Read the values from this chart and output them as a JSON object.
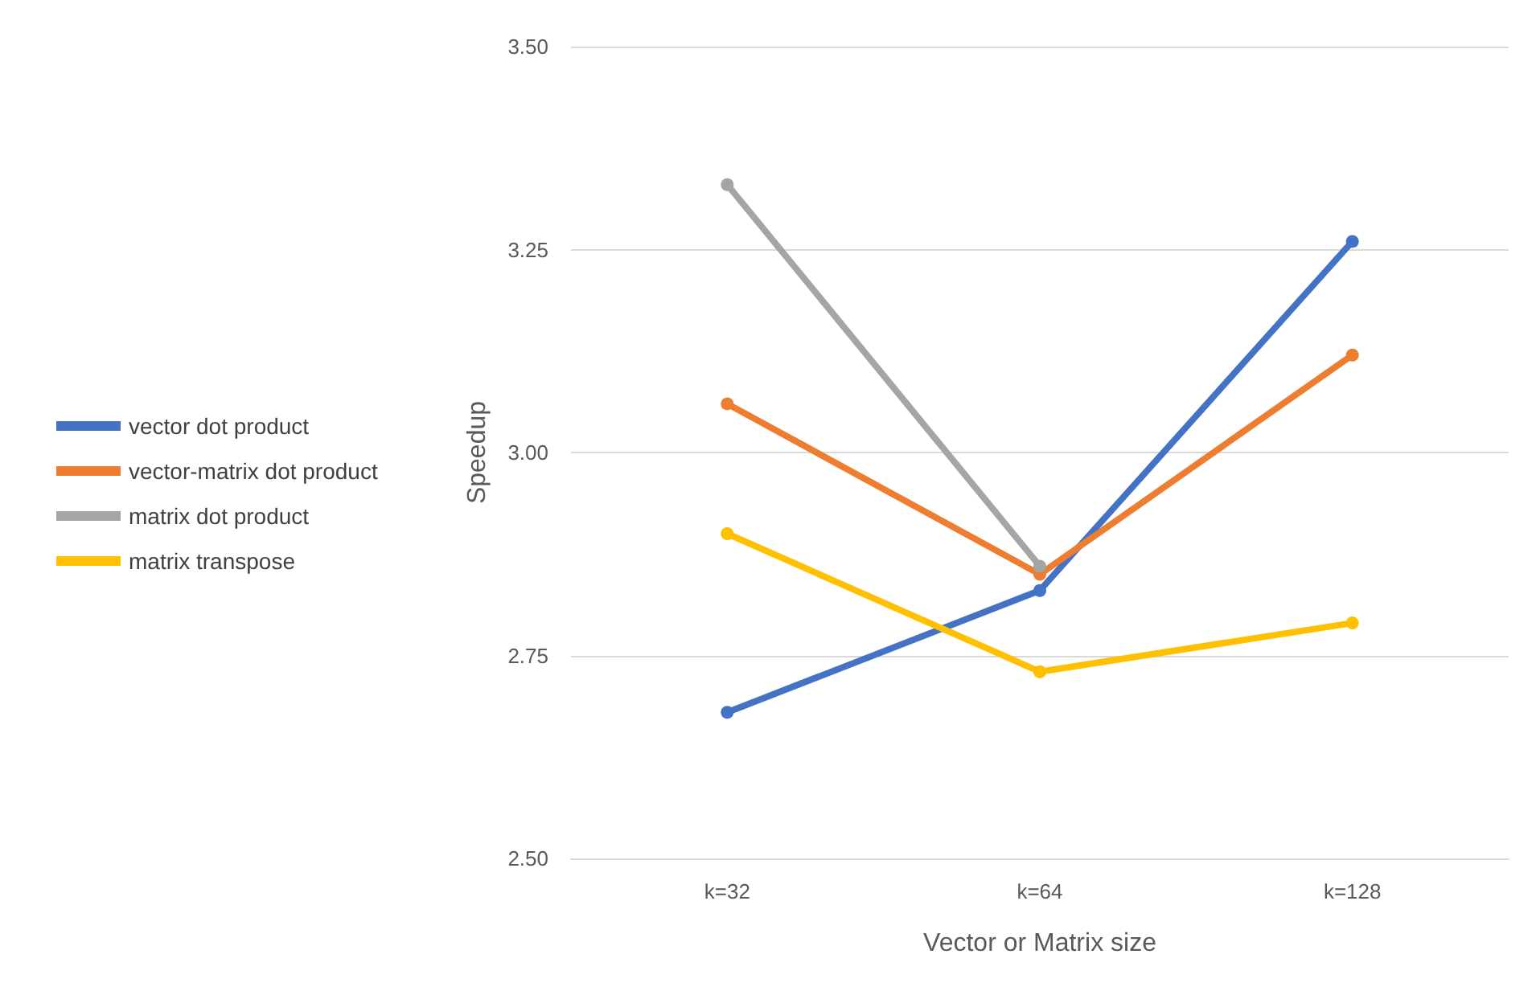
{
  "chart_data": {
    "type": "line",
    "xlabel": "Vector or Matrix size",
    "ylabel": "Speedup",
    "categories": [
      "k=32",
      "k=64",
      "k=128"
    ],
    "series": [
      {
        "name": "vector dot product",
        "color": "#4472c4",
        "values": [
          2.68,
          2.83,
          3.26
        ]
      },
      {
        "name": "vector-matrix dot product",
        "color": "#ed7d31",
        "values": [
          3.06,
          2.85,
          3.12
        ]
      },
      {
        "name": "matrix dot product",
        "color": "#a5a5a5",
        "values": [
          3.33,
          2.86,
          null
        ]
      },
      {
        "name": "matrix transpose",
        "color": "#ffc000",
        "values": [
          2.9,
          2.73,
          2.79
        ]
      }
    ],
    "ylim": [
      2.5,
      3.5
    ],
    "yticks": [
      {
        "value": 2.5,
        "label": "2.50"
      },
      {
        "value": 2.75,
        "label": "2.75"
      },
      {
        "value": 3,
        "label": "3.00"
      },
      {
        "value": 3.25,
        "label": "3.25"
      },
      {
        "value": 3.5,
        "label": "3.50"
      }
    ],
    "grid": "y",
    "legend": "left",
    "marker": "circle",
    "line_style": "solid"
  }
}
